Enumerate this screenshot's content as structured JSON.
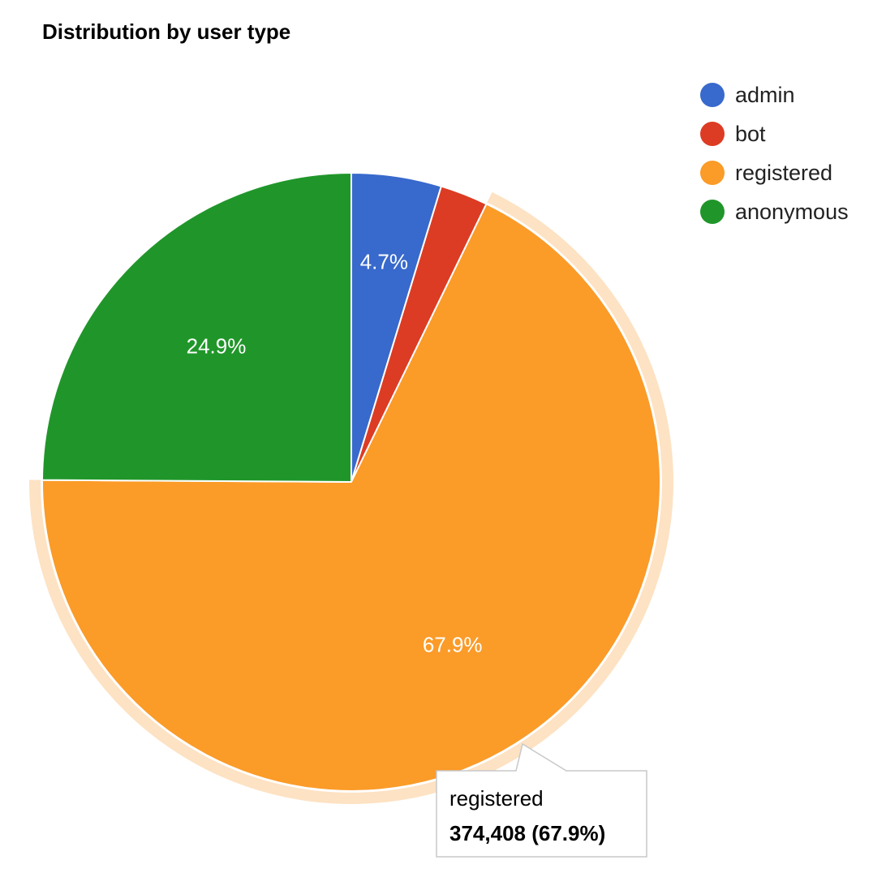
{
  "chart_data": {
    "type": "pie",
    "title": "Distribution by user type",
    "slices": [
      {
        "label": "admin",
        "percent": 4.7,
        "color": "#3869cc",
        "show_label": true
      },
      {
        "label": "bot",
        "percent": 2.5,
        "color": "#dc3c23",
        "show_label": false
      },
      {
        "label": "registered",
        "percent": 67.9,
        "color": "#fb9b28",
        "show_label": true,
        "value": "374,408"
      },
      {
        "label": "anonymous",
        "percent": 24.9,
        "color": "#20962a",
        "show_label": true
      }
    ],
    "legend_position": "right",
    "highlighted": "registered",
    "highlight_color": "#fde2c3"
  },
  "tooltip": {
    "label": "registered",
    "value_text": "374,408 (67.9%)"
  }
}
